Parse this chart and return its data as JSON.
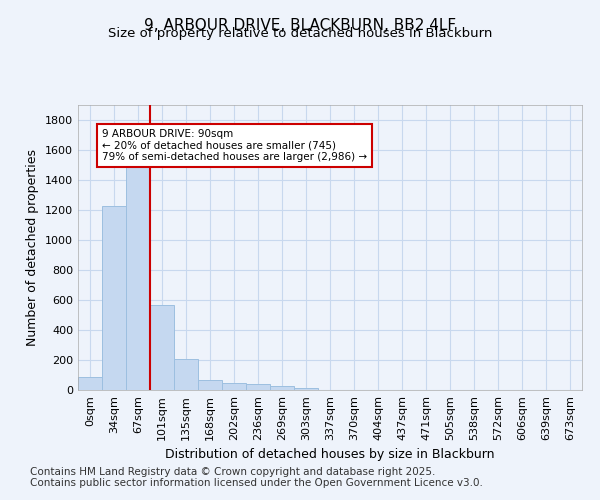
{
  "title": "9, ARBOUR DRIVE, BLACKBURN, BB2 4LF",
  "subtitle": "Size of property relative to detached houses in Blackburn",
  "xlabel": "Distribution of detached houses by size in Blackburn",
  "ylabel": "Number of detached properties",
  "categories": [
    "0sqm",
    "34sqm",
    "67sqm",
    "101sqm",
    "135sqm",
    "168sqm",
    "202sqm",
    "236sqm",
    "269sqm",
    "303sqm",
    "337sqm",
    "370sqm",
    "404sqm",
    "437sqm",
    "471sqm",
    "505sqm",
    "538sqm",
    "572sqm",
    "606sqm",
    "639sqm",
    "673sqm"
  ],
  "values": [
    90,
    1230,
    1500,
    570,
    210,
    70,
    50,
    40,
    25,
    15,
    0,
    0,
    0,
    0,
    0,
    0,
    0,
    0,
    0,
    0,
    0
  ],
  "bar_color": "#c5d8f0",
  "bar_edge_color": "#9dbfe0",
  "red_line_index": 3,
  "red_line_color": "#cc0000",
  "annotation_text": "9 ARBOUR DRIVE: 90sqm\n← 20% of detached houses are smaller (745)\n79% of semi-detached houses are larger (2,986) →",
  "annotation_box_color": "#ffffff",
  "annotation_box_edge_color": "#cc0000",
  "ylim": [
    0,
    1900
  ],
  "yticks": [
    0,
    200,
    400,
    600,
    800,
    1000,
    1200,
    1400,
    1600,
    1800
  ],
  "footer_text": "Contains HM Land Registry data © Crown copyright and database right 2025.\nContains public sector information licensed under the Open Government Licence v3.0.",
  "background_color": "#eef3fb",
  "plot_background_color": "#eef3fb",
  "grid_color": "#c8d8ee",
  "title_fontsize": 11,
  "subtitle_fontsize": 9.5,
  "axis_label_fontsize": 9,
  "tick_fontsize": 8,
  "footer_fontsize": 7.5
}
